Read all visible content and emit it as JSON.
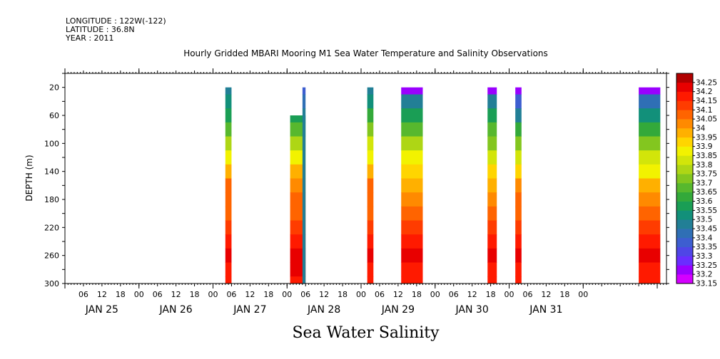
{
  "meta": {
    "longitude": "LONGITUDE : 122W(-122)",
    "latitude": "LATITUDE : 36.8N",
    "year": "YEAR : 2011"
  },
  "chart_data": {
    "type": "heatmap",
    "title": "Hourly Gridded MBARI Mooring M1 Sea Water Temperature and Salinity Observations",
    "subtitle": "Sea Water Salinity",
    "ylabel": "DEPTH (m)",
    "xlabel": "",
    "x_time_range_hours": [
      0,
      168
    ],
    "ylim": [
      300,
      0
    ],
    "y_ticks": [
      20,
      60,
      100,
      140,
      180,
      220,
      260,
      300
    ],
    "x_hour_tick_labels": [
      "06",
      "12",
      "18",
      "00",
      "06",
      "12",
      "18",
      "00",
      "06",
      "12",
      "18",
      "00",
      "06",
      "12",
      "18",
      "00",
      "06",
      "12",
      "18",
      "00",
      "06",
      "12",
      "18",
      "00",
      "06",
      "12",
      "18",
      "00"
    ],
    "x_day_labels": [
      "JAN 25",
      "JAN 26",
      "JAN 27",
      "JAN 28",
      "JAN 29",
      "JAN 30",
      "JAN 31"
    ],
    "colorbar_levels": [
      33.15,
      33.2,
      33.25,
      33.3,
      33.35,
      33.4,
      33.45,
      33.5,
      33.55,
      33.6,
      33.65,
      33.7,
      33.75,
      33.8,
      33.85,
      33.9,
      33.95,
      34.0,
      34.05,
      34.1,
      34.15,
      34.2,
      34.25
    ],
    "colorbar_labels": [
      "33.15",
      "33.2",
      "33.25",
      "33.3",
      "33.35",
      "33.4",
      "33.45",
      "33.5",
      "33.55",
      "33.6",
      "33.65",
      "33.7",
      "33.75",
      "33.8",
      "33.85",
      "33.9",
      "33.95",
      "34",
      "34.05",
      "34.1",
      "34.15",
      "34.2",
      "34.25"
    ],
    "colorbar_colors": [
      "#d400ff",
      "#9a00ff",
      "#6a2dff",
      "#4f46e6",
      "#3d5ed0",
      "#2f6fb5",
      "#227f96",
      "#12907a",
      "#1a9e55",
      "#33a93a",
      "#57b82e",
      "#83c61f",
      "#aed615",
      "#d2e50a",
      "#f2f200",
      "#ffd500",
      "#ffb000",
      "#ff8a00",
      "#ff6400",
      "#ff3c00",
      "#ff1a00",
      "#e80000",
      "#b00000"
    ],
    "series": [
      {
        "start_hour": 52,
        "end_hour": 54,
        "top_depth": 20,
        "depths": [
          20,
          40,
          60,
          80,
          100,
          120,
          140,
          160,
          180,
          200,
          220,
          240,
          260,
          280,
          300
        ],
        "values": [
          33.45,
          33.5,
          33.55,
          33.65,
          33.75,
          33.85,
          33.95,
          34.05,
          34.05,
          34.05,
          34.1,
          34.15,
          34.2,
          34.15,
          34.15
        ]
      },
      {
        "start_hour": 73,
        "end_hour": 78,
        "top_depth": 60,
        "depths": [
          60,
          80,
          100,
          120,
          140,
          160,
          180,
          200,
          220,
          240,
          260,
          280,
          300
        ],
        "values": [
          33.55,
          33.65,
          33.75,
          33.85,
          33.95,
          34.0,
          34.05,
          34.05,
          34.1,
          34.15,
          34.2,
          34.2,
          34.15
        ]
      },
      {
        "start_hour": 77,
        "end_hour": 78,
        "top_depth": 20,
        "depths": [
          20,
          40,
          60
        ],
        "values": [
          33.35,
          33.4,
          33.45
        ]
      },
      {
        "start_hour": 98,
        "end_hour": 100,
        "top_depth": 20,
        "depths": [
          20,
          40,
          60,
          80,
          100,
          120,
          140,
          160,
          180,
          200,
          220,
          240,
          260,
          280,
          300
        ],
        "values": [
          33.45,
          33.5,
          33.6,
          33.7,
          33.8,
          33.85,
          33.95,
          34.05,
          34.05,
          34.05,
          34.1,
          34.15,
          34.2,
          34.15,
          34.15
        ]
      },
      {
        "start_hour": 109,
        "end_hour": 116,
        "top_depth": 20,
        "depths": [
          20,
          40,
          60,
          80,
          100,
          120,
          140,
          160,
          180,
          200,
          220,
          240,
          260,
          280,
          300
        ],
        "values": [
          33.2,
          33.45,
          33.55,
          33.65,
          33.75,
          33.85,
          33.9,
          33.95,
          34.0,
          34.05,
          34.1,
          34.15,
          34.2,
          34.15,
          34.15
        ]
      },
      {
        "start_hour": 137,
        "end_hour": 140,
        "top_depth": 20,
        "depths": [
          20,
          40,
          60,
          80,
          100,
          120,
          140,
          160,
          180,
          200,
          220,
          240,
          260,
          280,
          300
        ],
        "values": [
          33.2,
          33.45,
          33.55,
          33.65,
          33.7,
          33.8,
          33.9,
          33.95,
          34.0,
          34.05,
          34.1,
          34.15,
          34.2,
          34.15,
          34.15
        ]
      },
      {
        "start_hour": 146,
        "end_hour": 148,
        "top_depth": 20,
        "depths": [
          20,
          40,
          60,
          80,
          100,
          120,
          140,
          160,
          180,
          200,
          220,
          240,
          260,
          280,
          300
        ],
        "values": [
          33.2,
          33.35,
          33.45,
          33.6,
          33.7,
          33.8,
          33.9,
          34.0,
          34.05,
          34.05,
          34.1,
          34.15,
          34.2,
          34.15,
          34.15
        ]
      },
      {
        "start_hour": 186,
        "end_hour": 193,
        "top_depth": 20,
        "depths": [
          20,
          40,
          60,
          80,
          100,
          120,
          140,
          160,
          180,
          200,
          220,
          240,
          260,
          280,
          300
        ],
        "values": [
          33.2,
          33.4,
          33.5,
          33.6,
          33.7,
          33.8,
          33.85,
          33.95,
          34.0,
          34.05,
          34.1,
          34.15,
          34.2,
          34.15,
          34.15
        ]
      }
    ]
  }
}
